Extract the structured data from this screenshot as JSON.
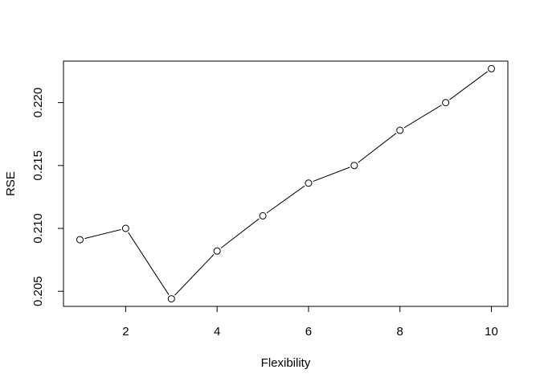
{
  "chart_data": {
    "type": "line",
    "xlabel": "Flexibility",
    "ylabel": "RSE",
    "x": [
      1,
      2,
      3,
      4,
      5,
      6,
      7,
      8,
      9,
      10
    ],
    "y": [
      0.2091,
      0.21,
      0.2044,
      0.2082,
      0.211,
      0.2136,
      0.215,
      0.2178,
      0.22,
      0.2227
    ],
    "xlim": [
      0.64,
      10.36
    ],
    "ylim": [
      0.2038,
      0.2233
    ],
    "xticks": [
      "2",
      "4",
      "6",
      "8",
      "10"
    ],
    "xtick_values": [
      2,
      4,
      6,
      8,
      10
    ],
    "yticks": [
      "0.205",
      "0.210",
      "0.215",
      "0.220"
    ],
    "ytick_values": [
      0.205,
      0.21,
      0.215,
      0.22
    ],
    "marker": "open-circle",
    "grid": false,
    "legend": "none",
    "line_color": "#000000"
  }
}
